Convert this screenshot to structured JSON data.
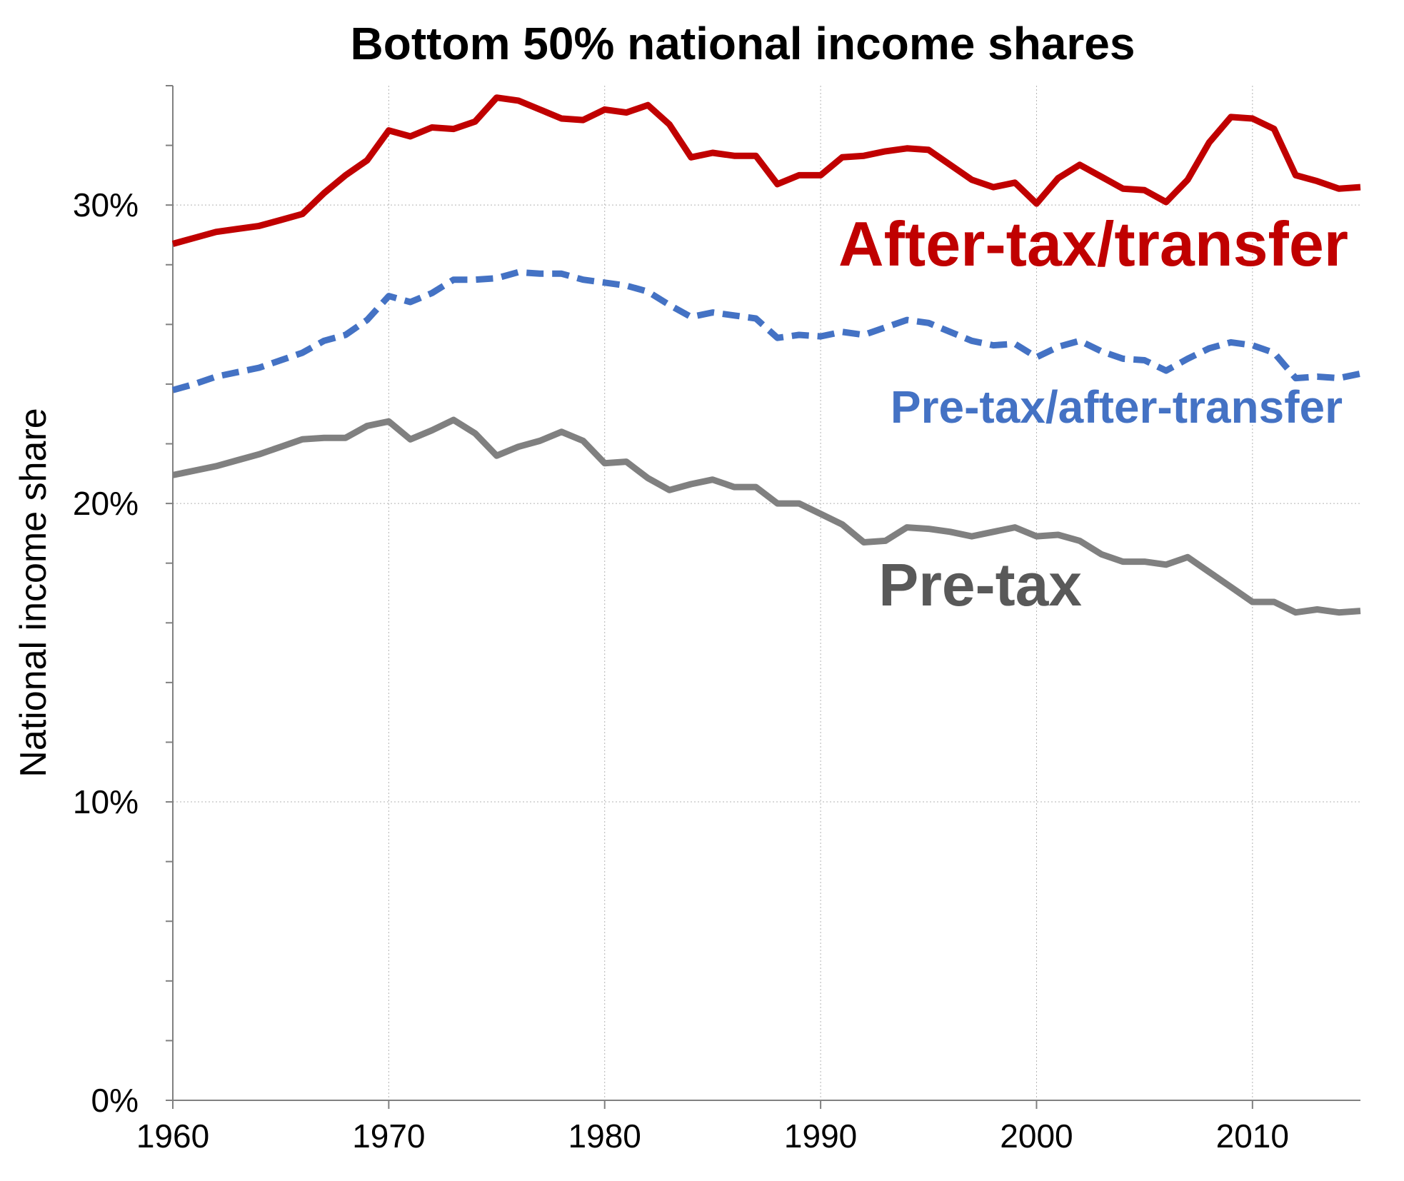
{
  "chart_data": {
    "type": "line",
    "title": "Bottom 50% national income shares",
    "xlabel": "",
    "ylabel": "National income share",
    "xlim": [
      1960,
      2015
    ],
    "ylim": [
      0,
      34
    ],
    "x_ticks": [
      1960,
      1970,
      1980,
      1990,
      2000,
      2010
    ],
    "y_ticks": [
      {
        "value": 0,
        "label": "0%"
      },
      {
        "value": 10,
        "label": "10%"
      },
      {
        "value": 20,
        "label": "20%"
      },
      {
        "value": 30,
        "label": "30%"
      }
    ],
    "y_minor_ticks": [
      2,
      4,
      6,
      8,
      12,
      14,
      16,
      18,
      22,
      24,
      26,
      28,
      32,
      34
    ],
    "grid": true,
    "legend": "direct labels on lines",
    "x": [
      1960,
      1961,
      1962,
      1963,
      1964,
      1965,
      1966,
      1967,
      1968,
      1969,
      1970,
      1971,
      1972,
      1973,
      1974,
      1975,
      1976,
      1977,
      1978,
      1979,
      1980,
      1981,
      1982,
      1983,
      1984,
      1985,
      1986,
      1987,
      1988,
      1989,
      1990,
      1991,
      1992,
      1993,
      1994,
      1995,
      1996,
      1997,
      1998,
      1999,
      2000,
      2001,
      2002,
      2003,
      2004,
      2005,
      2006,
      2007,
      2008,
      2009,
      2010,
      2011,
      2012,
      2013,
      2014,
      2015
    ],
    "series": [
      {
        "name": "After-tax/transfer",
        "color": "#c00000",
        "style": "solid",
        "values": [
          28.7,
          28.9,
          29.1,
          29.2,
          29.3,
          29.5,
          29.7,
          30.4,
          31.0,
          31.5,
          32.5,
          32.3,
          32.6,
          32.55,
          32.8,
          33.6,
          33.5,
          33.2,
          32.9,
          32.85,
          33.2,
          33.1,
          33.35,
          32.7,
          31.6,
          31.75,
          31.65,
          31.65,
          30.7,
          31.0,
          31.0,
          31.6,
          31.65,
          31.8,
          31.9,
          31.85,
          31.35,
          30.85,
          30.6,
          30.75,
          30.05,
          30.9,
          31.35,
          30.95,
          30.55,
          30.5,
          30.1,
          30.85,
          32.1,
          32.95,
          32.9,
          32.55,
          31.0,
          30.8,
          30.55,
          30.6
        ]
      },
      {
        "name": "Pre-tax/after-transfer",
        "color": "#4472c4",
        "style": "dashed",
        "values": [
          23.8,
          24.0,
          24.25,
          24.4,
          24.55,
          24.8,
          25.05,
          25.45,
          25.65,
          26.15,
          26.95,
          26.75,
          27.05,
          27.5,
          27.5,
          27.55,
          27.75,
          27.7,
          27.7,
          27.5,
          27.4,
          27.3,
          27.1,
          26.65,
          26.25,
          26.4,
          26.3,
          26.2,
          25.55,
          25.65,
          25.6,
          25.75,
          25.65,
          25.9,
          26.15,
          26.05,
          25.75,
          25.45,
          25.3,
          25.35,
          24.9,
          25.25,
          25.45,
          25.1,
          24.85,
          24.8,
          24.45,
          24.85,
          25.2,
          25.4,
          25.3,
          25.05,
          24.2,
          24.25,
          24.2,
          24.35
        ]
      },
      {
        "name": "Pre-tax",
        "color": "#808080",
        "style": "solid",
        "values": [
          20.95,
          21.1,
          21.25,
          21.45,
          21.65,
          21.9,
          22.15,
          22.2,
          22.2,
          22.6,
          22.75,
          22.15,
          22.45,
          22.8,
          22.35,
          21.6,
          21.9,
          22.1,
          22.4,
          22.1,
          21.35,
          21.4,
          20.85,
          20.45,
          20.65,
          20.8,
          20.55,
          20.55,
          20.0,
          20.0,
          19.65,
          19.3,
          18.7,
          18.75,
          19.2,
          19.15,
          19.05,
          18.9,
          19.05,
          19.2,
          18.9,
          18.95,
          18.75,
          18.3,
          18.05,
          18.05,
          17.95,
          18.2,
          17.7,
          17.2,
          16.7,
          16.7,
          16.35,
          16.45,
          16.35,
          16.4
        ]
      }
    ],
    "annotations": [
      {
        "text": "After-tax/transfer",
        "series": "After-tax/transfer"
      },
      {
        "text": "Pre-tax/after-transfer",
        "series": "Pre-tax/after-transfer"
      },
      {
        "text": "Pre-tax",
        "series": "Pre-tax"
      }
    ]
  }
}
